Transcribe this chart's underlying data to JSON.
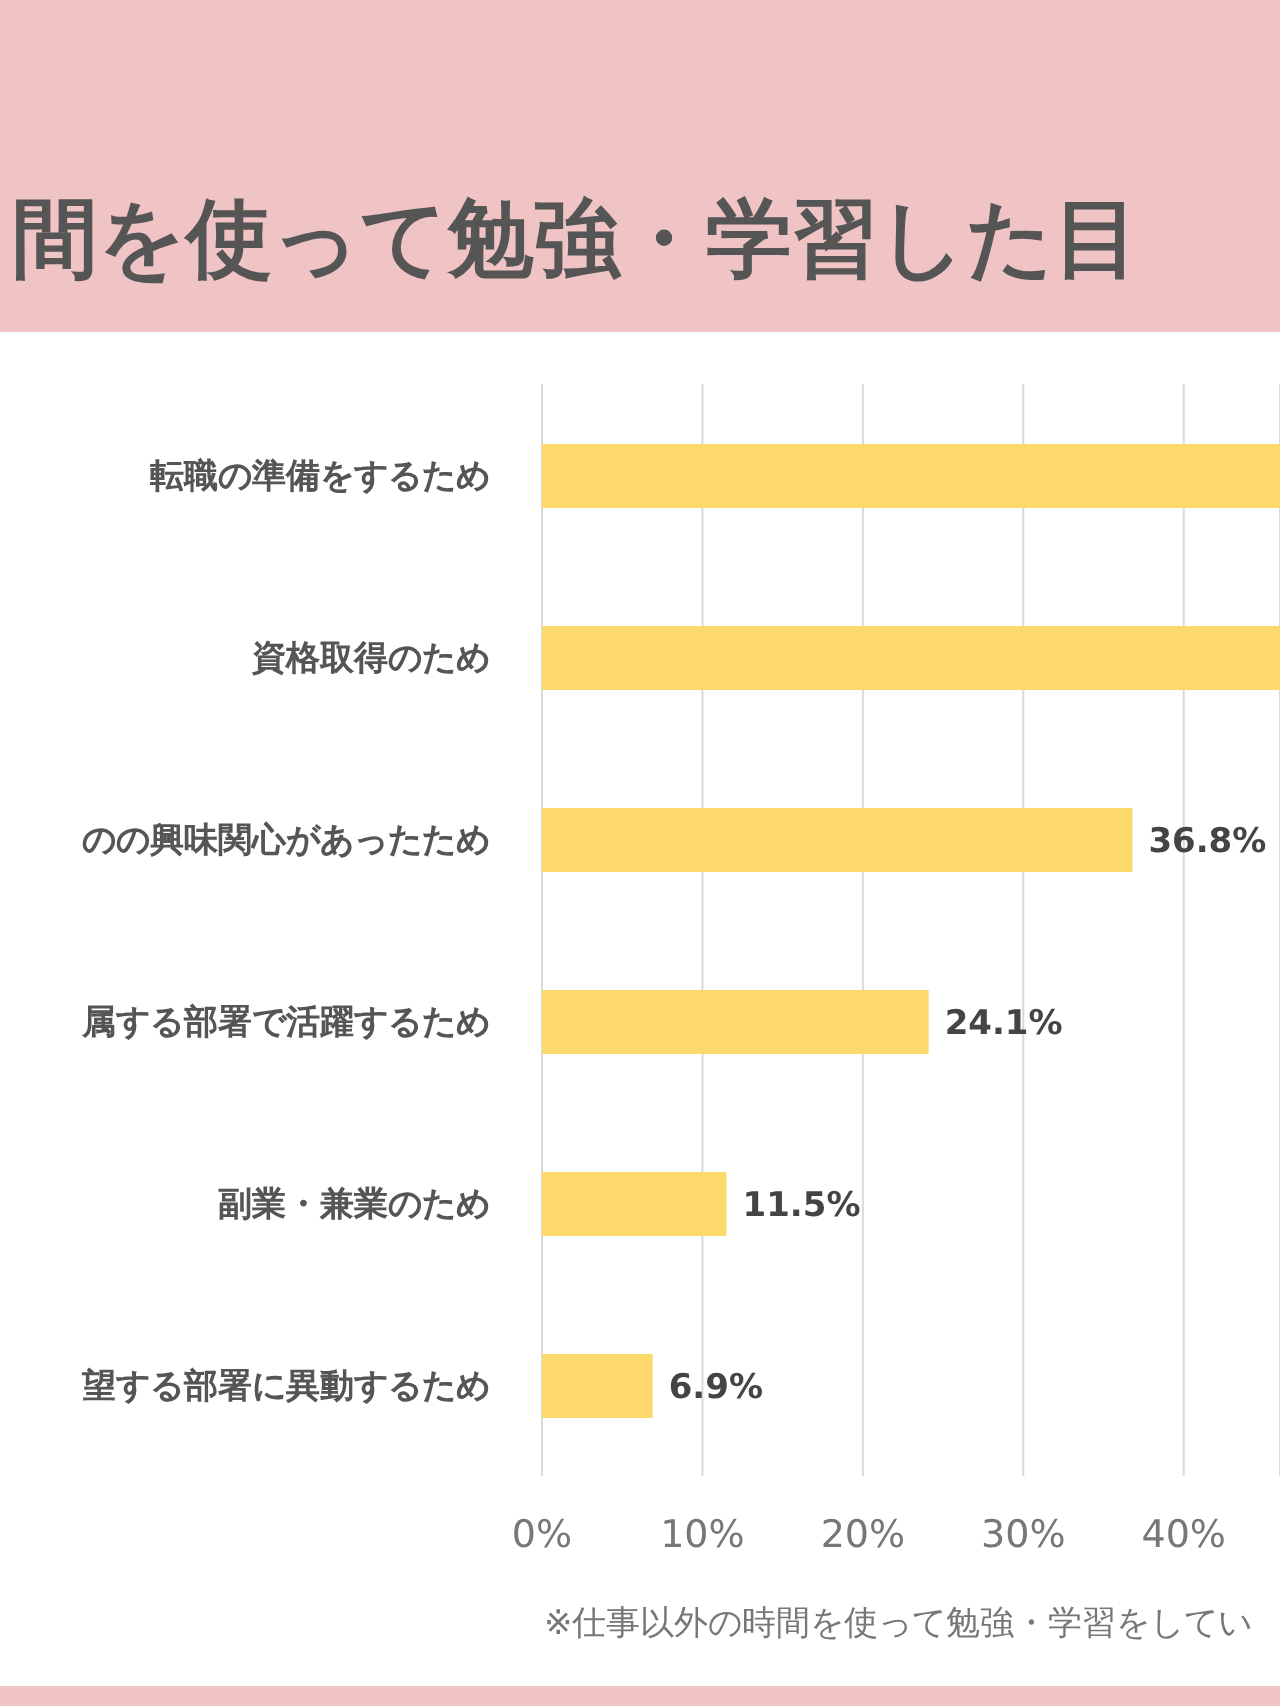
{
  "chart_data": {
    "type": "bar",
    "orientation": "horizontal",
    "title": "間を使って勉強・学習した目",
    "categories": [
      "転職の準備をするため",
      "資格取得のため",
      "のの興味関心があったため",
      "属する部署で活躍するため",
      "副業・兼業のため",
      "望する部署に異動するため"
    ],
    "values": [
      46,
      46,
      36.8,
      24.1,
      11.5,
      6.9
    ],
    "value_labels": [
      null,
      null,
      "36.8%",
      "24.1%",
      "11.5%",
      "6.9%"
    ],
    "color": "#fdd86b",
    "xlim": [
      0,
      46
    ],
    "xticks": [
      {
        "value": 0,
        "label": "0%"
      },
      {
        "value": 10,
        "label": "10%"
      },
      {
        "value": 20,
        "label": "20%"
      },
      {
        "value": 30,
        "label": "30%"
      },
      {
        "value": 40,
        "label": "40%"
      }
    ],
    "grid": "x",
    "annotations": [
      "※仕事以外の時間を使って勉強・学習をしてい"
    ]
  }
}
